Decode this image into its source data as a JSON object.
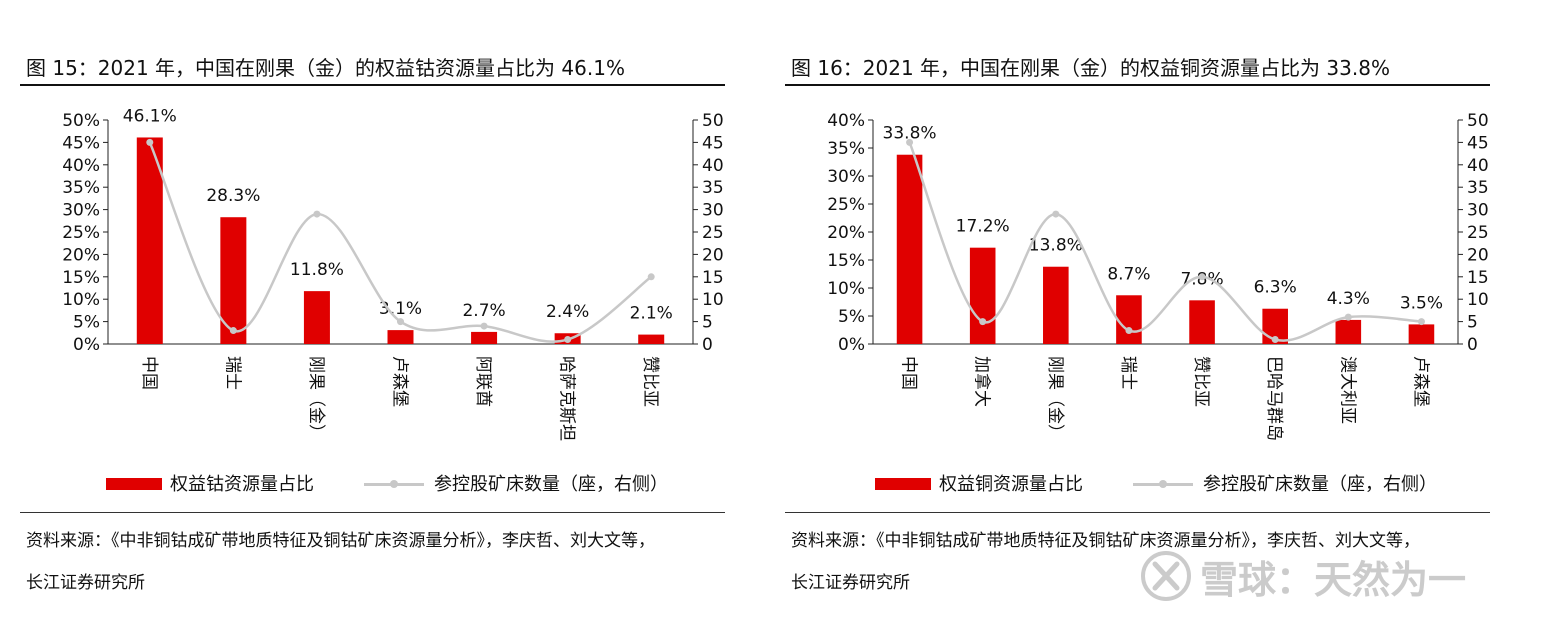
{
  "chart_data": [
    {
      "type": "bar",
      "title": "图  15：2021 年，中国在刚果（金）的权益钴资源量占比为 46.1%",
      "categories": [
        "中国",
        "瑞士",
        "刚果（金）",
        "卢森堡",
        "阿联酋",
        "哈萨克斯坦",
        "赞比亚"
      ],
      "series": [
        {
          "name": "权益钴资源量占比",
          "axis": "left",
          "kind": "bar",
          "color": "#e00000",
          "values": [
            46.1,
            28.3,
            11.8,
            3.1,
            2.7,
            2.4,
            2.1
          ],
          "labels": [
            "46.1%",
            "28.3%",
            "11.8%",
            "3.1%",
            "2.7%",
            "2.4%",
            "2.1%"
          ]
        },
        {
          "name": "参控股矿床数量（座，右侧）",
          "axis": "right",
          "kind": "line",
          "color": "#c8c8c8",
          "values": [
            45,
            3,
            29,
            5,
            4,
            1,
            15
          ]
        }
      ],
      "y_left": {
        "min": 0,
        "max": 50,
        "step": 5,
        "ticks": [
          "0%",
          "5%",
          "10%",
          "15%",
          "20%",
          "25%",
          "30%",
          "35%",
          "40%",
          "45%",
          "50%"
        ]
      },
      "y_right": {
        "min": 0,
        "max": 50,
        "step": 5,
        "ticks": [
          "0",
          "5",
          "10",
          "15",
          "20",
          "25",
          "30",
          "35",
          "40",
          "45",
          "50"
        ]
      },
      "legend": {
        "bar": "权益钴资源量占比",
        "line": "参控股矿床数量（座，右侧）",
        "position": "bottom"
      },
      "source": [
        "资料来源：《中非铜钴成矿带地质特征及铜钴矿床资源量分析》，李庆哲、刘大文等，",
        "长江证券研究所"
      ]
    },
    {
      "type": "bar",
      "title": "图  16：2021 年，中国在刚果（金）的权益铜资源量占比为 33.8%",
      "categories": [
        "中国",
        "加拿大",
        "刚果（金）",
        "瑞士",
        "赞比亚",
        "巴哈马群岛",
        "澳大利亚",
        "卢森堡"
      ],
      "series": [
        {
          "name": "权益铜资源量占比",
          "axis": "left",
          "kind": "bar",
          "color": "#e00000",
          "values": [
            33.8,
            17.2,
            13.8,
            8.7,
            7.8,
            6.3,
            4.3,
            3.5
          ],
          "labels": [
            "33.8%",
            "17.2%",
            "13.8%",
            "8.7%",
            "7.8%",
            "6.3%",
            "4.3%",
            "3.5%"
          ]
        },
        {
          "name": "参控股矿床数量（座，右侧）",
          "axis": "right",
          "kind": "line",
          "color": "#c8c8c8",
          "values": [
            45,
            5,
            29,
            3,
            15,
            1,
            6,
            5
          ]
        }
      ],
      "y_left": {
        "min": 0,
        "max": 40,
        "step": 5,
        "ticks": [
          "0%",
          "5%",
          "10%",
          "15%",
          "20%",
          "25%",
          "30%",
          "35%",
          "40%"
        ]
      },
      "y_right": {
        "min": 0,
        "max": 50,
        "step": 5,
        "ticks": [
          "0",
          "5",
          "10",
          "15",
          "20",
          "25",
          "30",
          "35",
          "40",
          "45",
          "50"
        ]
      },
      "legend": {
        "bar": "权益铜资源量占比",
        "line": "参控股矿床数量（座，右侧）",
        "position": "bottom"
      },
      "source": [
        "资料来源：《中非铜钴成矿带地质特征及铜钴矿床资源量分析》，李庆哲、刘大文等，",
        "长江证券研究所"
      ]
    }
  ],
  "watermark": "雪球：天然为一"
}
